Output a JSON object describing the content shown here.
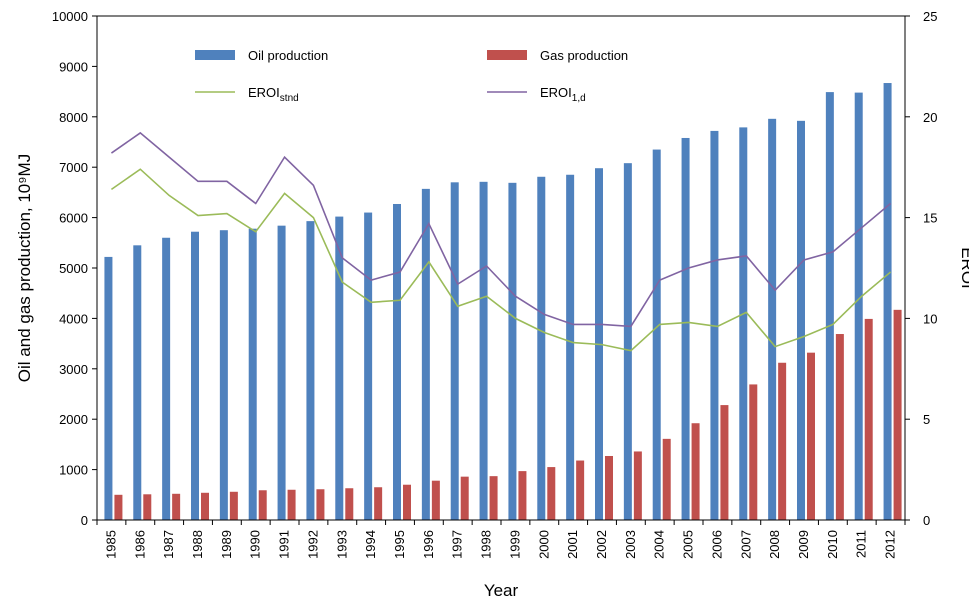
{
  "chart_data": {
    "type": "bar_line",
    "x_label": "Year",
    "y_label": "Oil and gas production, 10⁹MJ",
    "y2_label": "EROI",
    "categories": [
      "1985",
      "1986",
      "1987",
      "1988",
      "1989",
      "1990",
      "1991",
      "1992",
      "1993",
      "1994",
      "1995",
      "1996",
      "1997",
      "1998",
      "1999",
      "2000",
      "2001",
      "2002",
      "2003",
      "2004",
      "2005",
      "2006",
      "2007",
      "2008",
      "2009",
      "2010",
      "2011",
      "2012"
    ],
    "ylim": [
      0,
      10000
    ],
    "yticks": [
      0,
      1000,
      2000,
      3000,
      4000,
      5000,
      6000,
      7000,
      8000,
      9000,
      10000
    ],
    "y2lim": [
      0,
      25
    ],
    "y2ticks": [
      0,
      5,
      10,
      15,
      20,
      25
    ],
    "series": [
      {
        "name": "Oil production",
        "kind": "bar",
        "color": "#4f81bd",
        "values": [
          5220,
          5450,
          5600,
          5720,
          5750,
          5780,
          5840,
          5930,
          6020,
          6100,
          6270,
          6570,
          6700,
          6710,
          6690,
          6810,
          6850,
          6980,
          7080,
          7350,
          7580,
          7720,
          7790,
          7960,
          7920,
          8490,
          8480,
          8670
        ]
      },
      {
        "name": "Gas production",
        "kind": "bar",
        "color": "#c0504d",
        "values": [
          500,
          510,
          520,
          540,
          560,
          590,
          600,
          610,
          630,
          650,
          700,
          780,
          860,
          870,
          970,
          1050,
          1180,
          1270,
          1360,
          1610,
          1920,
          2280,
          2690,
          3120,
          3320,
          3690,
          3990,
          4170
        ]
      },
      {
        "name": "EROI",
        "name_sub": "stnd",
        "kind": "line",
        "axis": "y2",
        "color": "#9bbb59",
        "values": [
          16.4,
          17.4,
          16.1,
          15.1,
          15.2,
          14.3,
          16.2,
          15.0,
          11.8,
          10.8,
          10.9,
          12.8,
          10.6,
          11.1,
          10.0,
          9.3,
          8.8,
          8.7,
          8.4,
          9.7,
          9.8,
          9.6,
          10.3,
          8.6,
          9.1,
          9.7,
          11.1,
          12.3
        ]
      },
      {
        "name": "EROI",
        "name_sub": "1,d",
        "kind": "line",
        "axis": "y2",
        "color": "#8064a2",
        "values": [
          18.2,
          19.2,
          18.0,
          16.8,
          16.8,
          15.7,
          18.0,
          16.6,
          13.0,
          11.9,
          12.3,
          14.7,
          11.7,
          12.6,
          11.1,
          10.2,
          9.7,
          9.7,
          9.6,
          11.9,
          12.5,
          12.9,
          13.1,
          11.4,
          12.9,
          13.3,
          14.5,
          15.7
        ]
      }
    ]
  }
}
